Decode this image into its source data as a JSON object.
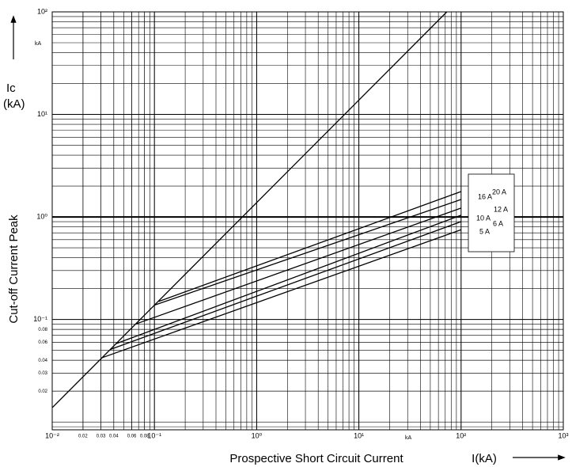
{
  "chart_data": {
    "type": "line",
    "title_lines": [
      "Ic",
      "(kA)"
    ],
    "y_label": "Cut-off Current Peak",
    "x_label": "Prospective Short Circuit Current",
    "x_unit_label": "I(kA)",
    "annotations": [
      "kA",
      "kA"
    ],
    "log_x": true,
    "log_y": true,
    "grid": true,
    "minor_grid": true,
    "xlim": [
      0.01,
      1000
    ],
    "ylim": [
      0.0084,
      100
    ],
    "xticks": [
      {
        "value": 0.01,
        "label": "10⁻²"
      },
      0.02,
      0.03,
      0.04,
      0.06,
      0.08,
      {
        "value": 0.1,
        "label": "10⁻¹"
      },
      {
        "value": 1,
        "label": "10⁰"
      },
      {
        "value": 10,
        "label": "10¹"
      },
      {
        "value": 100,
        "label": "10²"
      },
      {
        "value": 1000,
        "label": "10³"
      }
    ],
    "yticks": [
      0.02,
      0.03,
      0.04,
      0.06,
      0.08,
      {
        "value": 0.1,
        "label": "10⁻¹"
      },
      {
        "value": 1,
        "label": "10⁰"
      },
      {
        "value": 10,
        "label": "10¹"
      },
      {
        "value": 100,
        "label": "10²"
      }
    ],
    "series": [
      {
        "name": "Prospective",
        "color": "#000000",
        "x": [
          0.01,
          72.5
        ],
        "values": [
          0.0138,
          100
        ]
      },
      {
        "name": "20 A",
        "color": "#000000",
        "x": [
          0.11,
          100
        ],
        "values": [
          0.15,
          1.77
        ]
      },
      {
        "name": "16 A",
        "color": "#000000",
        "x": [
          0.1,
          100
        ],
        "values": [
          0.138,
          1.48
        ]
      },
      {
        "name": "12 A",
        "color": "#000000",
        "x": [
          0.065,
          100
        ],
        "values": [
          0.09,
          1.22
        ]
      },
      {
        "name": "10 A",
        "color": "#000000",
        "x": [
          0.042,
          100
        ],
        "values": [
          0.058,
          1.04
        ]
      },
      {
        "name": "6 A",
        "color": "#000000",
        "x": [
          0.037,
          100
        ],
        "values": [
          0.051,
          0.9
        ]
      },
      {
        "name": "5 A",
        "color": "#000000",
        "x": [
          0.03,
          100
        ],
        "values": [
          0.042,
          0.75
        ]
      }
    ]
  }
}
